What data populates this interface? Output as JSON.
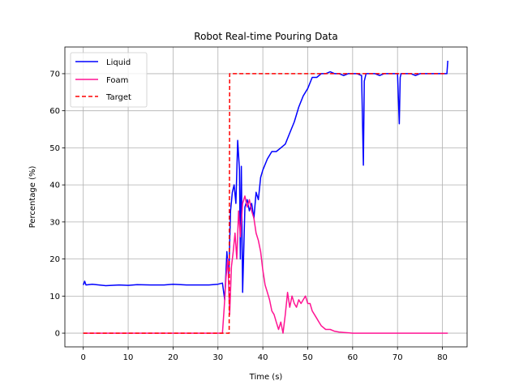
{
  "chart_data": {
    "type": "line",
    "title": "Robot Real-time Pouring Data",
    "xlabel": "Time (s)",
    "ylabel": "Percentage (%)",
    "xlim": [
      -4.1,
      85.5
    ],
    "ylim": [
      -3.7,
      77.2
    ],
    "xticks": [
      0,
      10,
      20,
      30,
      40,
      50,
      60,
      70,
      80
    ],
    "yticks": [
      0,
      10,
      20,
      30,
      40,
      50,
      60,
      70
    ],
    "grid": true,
    "legend_position": "upper-left",
    "series": [
      {
        "name": "Liquid",
        "color": "#0000ff",
        "style": "solid",
        "x": [
          0,
          0.3,
          0.6,
          2,
          5,
          8,
          10,
          12,
          15,
          18,
          20,
          23,
          26,
          28,
          30,
          31,
          31.5,
          32,
          32.4,
          32.8,
          33.2,
          33.6,
          34,
          34.4,
          34.8,
          35,
          35.2,
          35.5,
          36,
          36.5,
          37,
          37.5,
          38,
          38.5,
          39,
          39.5,
          40,
          41,
          42,
          43,
          44,
          45,
          46,
          47,
          48,
          49,
          50,
          51,
          52,
          53,
          54,
          55,
          56,
          57,
          58,
          59,
          60,
          61,
          62,
          62.4,
          62.6,
          62.8,
          63,
          64,
          65,
          66,
          67,
          68,
          69,
          70,
          70.4,
          70.6,
          70.8,
          71,
          72,
          73,
          74,
          75,
          76,
          77,
          78,
          79,
          80,
          80.5,
          81,
          81.2
        ],
        "y": [
          13,
          14,
          13,
          13.2,
          12.8,
          13,
          12.9,
          13.1,
          13,
          13,
          13.2,
          13,
          13,
          13,
          13.2,
          13.5,
          9,
          22,
          15,
          33,
          38,
          40,
          35,
          52,
          44,
          20,
          45,
          11,
          34,
          36,
          33,
          35,
          31,
          38,
          36,
          42,
          44,
          47,
          49,
          49,
          50,
          51,
          54,
          57,
          61,
          64,
          66,
          69,
          69,
          70,
          70,
          70.5,
          70,
          70,
          69.5,
          70,
          70,
          70,
          69.5,
          45.3,
          68,
          69,
          70,
          70,
          70,
          69.5,
          70,
          70,
          70,
          70,
          56.5,
          69,
          70,
          70,
          70,
          70,
          69.5,
          70,
          70,
          70,
          70,
          70,
          70,
          70,
          70,
          73.5
        ]
      },
      {
        "name": "Foam",
        "color": "#ff1493",
        "style": "solid",
        "x": [
          0,
          5,
          10,
          20,
          30,
          31,
          31.4,
          31.8,
          32.2,
          32.6,
          33,
          33.4,
          33.8,
          34.2,
          34.6,
          35,
          35.5,
          36,
          36.5,
          37,
          37.5,
          38,
          38.5,
          39,
          39.5,
          40,
          40.5,
          41,
          41.5,
          42,
          42.5,
          43,
          43.5,
          44,
          44.5,
          45,
          45.5,
          46,
          46.5,
          47,
          47.5,
          48,
          48.5,
          49,
          49.5,
          50,
          50.5,
          51,
          51.5,
          52,
          52.5,
          53,
          54,
          55,
          56,
          57,
          58,
          59,
          60,
          62,
          65,
          70,
          75,
          80,
          81.2
        ],
        "y": [
          0,
          0,
          0,
          0,
          0,
          0,
          7,
          15,
          20,
          5,
          18,
          22,
          27,
          20,
          33,
          26,
          35,
          37,
          34,
          36,
          33,
          31,
          27,
          25,
          22,
          17,
          13,
          11,
          9,
          6,
          5,
          3,
          1,
          3,
          0,
          5,
          11,
          7,
          10,
          8,
          7,
          9,
          8,
          9,
          10,
          8,
          8,
          6,
          5,
          4,
          3,
          2,
          1,
          1,
          0.5,
          0.3,
          0.2,
          0.1,
          0,
          0,
          0,
          0,
          0,
          0,
          0
        ]
      },
      {
        "name": "Target",
        "color": "#ff0000",
        "style": "dashed",
        "x": [
          0,
          32.5,
          32.6,
          81
        ],
        "y": [
          0,
          0,
          70,
          70
        ]
      }
    ]
  }
}
